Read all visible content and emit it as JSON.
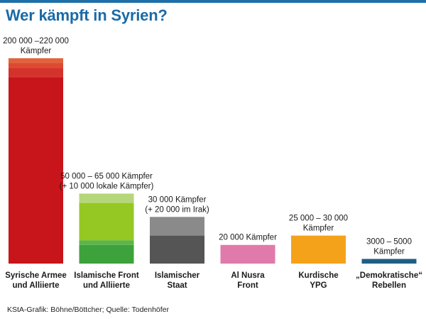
{
  "title": "Wer kämpft in Syrien?",
  "source": "KStA-Grafik: Böhne/Böttcher; Quelle: Todenhöfer",
  "chart_data": {
    "type": "bar",
    "title": "Wer kämpft in Syrien?",
    "categories": [
      [
        "Syrische Armee",
        "und Alliierte"
      ],
      [
        "Islamische Front",
        "und Alliierte"
      ],
      [
        "Islamischer",
        "Staat"
      ],
      [
        "Al Nusra",
        "Front"
      ],
      [
        "Kurdische",
        "YPG"
      ],
      [
        "„Demokratische“",
        "Rebellen"
      ]
    ],
    "value_labels": [
      [
        "200 000 –220 000",
        "Kämpfer"
      ],
      [
        "50 000 – 65 000 Kämpfer",
        "(+ 10 000 lokale Kämpfer)"
      ],
      [
        "30 000 Kämpfer",
        "(+ 20 000 im Irak)"
      ],
      [
        "20 000 Kämpfer"
      ],
      [
        "25 000 – 30 000",
        "Kämpfer"
      ],
      [
        "3000 – 5000",
        "Kämpfer"
      ]
    ],
    "bars": [
      {
        "segments": [
          {
            "value": 200000,
            "color": "#c8141b"
          },
          {
            "value": 10000,
            "color": "#d4332c"
          },
          {
            "value": 5000,
            "color": "#dd4a32"
          },
          {
            "value": 5000,
            "color": "#e2623c"
          }
        ]
      },
      {
        "segments": [
          {
            "value": 20000,
            "color": "#3da23c"
          },
          {
            "value": 5000,
            "color": "#5cb547"
          },
          {
            "value": 40000,
            "color": "#95c823"
          },
          {
            "value": 10000,
            "color": "#b5d67a"
          }
        ]
      },
      {
        "segments": [
          {
            "value": 30000,
            "color": "#555555"
          },
          {
            "value": 20000,
            "color": "#8a8a8a"
          }
        ]
      },
      {
        "segments": [
          {
            "value": 20000,
            "color": "#e07aaa"
          }
        ]
      },
      {
        "segments": [
          {
            "value": 30000,
            "color": "#f5a21b"
          }
        ]
      },
      {
        "segments": [
          {
            "value": 5000,
            "color": "#1f5f85"
          }
        ]
      }
    ],
    "ylim": [
      0,
      220000
    ],
    "grid": false
  }
}
